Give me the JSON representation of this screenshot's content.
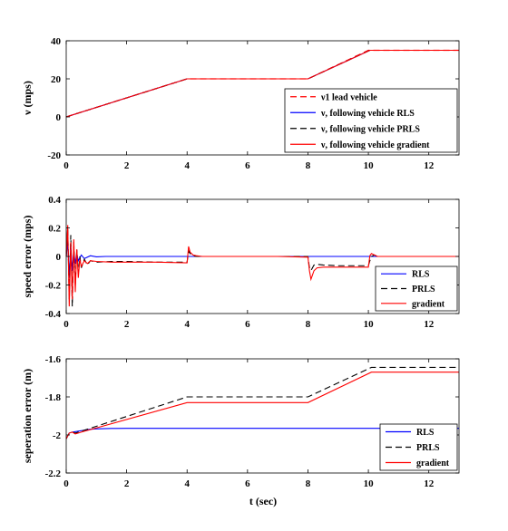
{
  "chart_data": [
    {
      "type": "line",
      "ylabel": "ν (mps)",
      "xlabel": "",
      "xlim": [
        0,
        13
      ],
      "ylim": [
        -20,
        40
      ],
      "xticks": [
        "0",
        "2",
        "4",
        "6",
        "8",
        "10",
        "12"
      ],
      "yticks": [
        "-20",
        "0",
        "20",
        "40"
      ],
      "grid": false,
      "legend_position": "bottom-right",
      "series": [
        {
          "name": "ν1 lead vehicle",
          "color": "#ff0000",
          "dash": "dashed",
          "x": [
            0,
            4,
            8,
            10,
            13
          ],
          "y": [
            0,
            20,
            20,
            35,
            35
          ]
        },
        {
          "name": "ν, following vehicle RLS",
          "color": "#0000ff",
          "dash": "solid",
          "x": [
            0,
            4,
            8,
            10.05,
            13
          ],
          "y": [
            0,
            20,
            20,
            35,
            35
          ]
        },
        {
          "name": "ν, following vehicle PRLS",
          "color": "#000000",
          "dash": "dashed",
          "x": [
            0,
            4,
            8,
            10.05,
            13
          ],
          "y": [
            0,
            20,
            20,
            35,
            35
          ]
        },
        {
          "name": "ν, following vehicle gradient",
          "color": "#ff0000",
          "dash": "solid",
          "x": [
            0,
            4,
            8,
            10.05,
            13
          ],
          "y": [
            0,
            20,
            20,
            35,
            35
          ]
        }
      ]
    },
    {
      "type": "line",
      "ylabel": "speed error (mps)",
      "xlabel": "",
      "xlim": [
        0,
        13
      ],
      "ylim": [
        -0.4,
        0.4
      ],
      "xticks": [
        "0",
        "2",
        "4",
        "6",
        "8",
        "10",
        "12"
      ],
      "yticks": [
        "-0.4",
        "-0.2",
        "0",
        "0.2",
        "0.4"
      ],
      "grid": false,
      "legend_position": "bottom-right",
      "series": [
        {
          "name": "RLS",
          "color": "#0000ff",
          "dash": "solid",
          "x": [
            0,
            0.05,
            0.1,
            0.15,
            0.2,
            0.25,
            0.3,
            0.35,
            0.4,
            0.5,
            0.6,
            0.8,
            1.0,
            1.3,
            13
          ],
          "y": [
            0,
            0.1,
            -0.15,
            0.08,
            -0.1,
            0.04,
            -0.05,
            0.02,
            -0.03,
            0.01,
            -0.015,
            0.005,
            -0.003,
            0,
            0
          ]
        },
        {
          "name": "PRLS",
          "color": "#000000",
          "dash": "dashed",
          "x": [
            0,
            0.05,
            0.1,
            0.15,
            0.2,
            0.25,
            0.3,
            0.35,
            0.4,
            0.45,
            0.5,
            0.6,
            0.7,
            0.8,
            1.0,
            1.5,
            2,
            3,
            4,
            4.05,
            4.1,
            4.2,
            4.3,
            4.5,
            5,
            6,
            7,
            8,
            8.05,
            8.1,
            8.2,
            8.3,
            8.5,
            9,
            9.5,
            10,
            10.05,
            10.1,
            10.2,
            10.3,
            10.5,
            11,
            12,
            13
          ],
          "y": [
            0,
            0.2,
            -0.3,
            0.15,
            -0.35,
            0.1,
            -0.2,
            0.05,
            -0.12,
            0.0,
            -0.08,
            -0.02,
            -0.06,
            -0.03,
            -0.04,
            -0.035,
            -0.035,
            -0.04,
            -0.04,
            0.04,
            0.02,
            0.005,
            0,
            0,
            0,
            0,
            0,
            0,
            -0.08,
            -0.1,
            -0.06,
            -0.055,
            -0.06,
            -0.065,
            -0.065,
            -0.065,
            -0.03,
            0.0,
            0.01,
            0.0,
            0,
            0,
            0,
            0
          ]
        },
        {
          "name": "gradient",
          "color": "#ff0000",
          "dash": "solid",
          "x": [
            0,
            0.05,
            0.1,
            0.15,
            0.2,
            0.25,
            0.3,
            0.35,
            0.4,
            0.45,
            0.5,
            0.6,
            0.7,
            0.8,
            1.0,
            1.5,
            2,
            3,
            4,
            4.05,
            4.1,
            4.2,
            4.3,
            4.5,
            5,
            6,
            7,
            8,
            8.05,
            8.1,
            8.2,
            8.3,
            8.5,
            9,
            9.5,
            10,
            10.05,
            10.1,
            10.2,
            10.3,
            10.5,
            11,
            12,
            13
          ],
          "y": [
            0,
            0.22,
            -0.35,
            0.1,
            -0.3,
            0.12,
            -0.25,
            0.05,
            -0.15,
            -0.02,
            -0.07,
            -0.03,
            -0.05,
            -0.03,
            -0.035,
            -0.04,
            -0.04,
            -0.04,
            -0.045,
            0.07,
            0.03,
            0.01,
            0.005,
            0,
            0,
            0,
            0,
            -0.005,
            -0.1,
            -0.16,
            -0.1,
            -0.08,
            -0.075,
            -0.075,
            -0.075,
            -0.075,
            0.005,
            0.02,
            0.01,
            0.0,
            0,
            0,
            0,
            0
          ]
        }
      ]
    },
    {
      "type": "line",
      "ylabel": "seperation error (m)",
      "xlabel": "t (sec)",
      "xlim": [
        0,
        13
      ],
      "ylim": [
        -2.2,
        -1.6
      ],
      "xticks": [
        "0",
        "2",
        "4",
        "6",
        "8",
        "10",
        "12"
      ],
      "yticks": [
        "-2.2",
        "-2",
        "-1.8",
        "-1.6"
      ],
      "grid": false,
      "legend_position": "bottom-right",
      "series": [
        {
          "name": "RLS",
          "color": "#0000ff",
          "dash": "solid",
          "x": [
            0,
            0.1,
            0.2,
            0.4,
            0.6,
            0.8,
            1.0,
            1.5,
            2,
            13
          ],
          "y": [
            -2.02,
            -1.99,
            -1.985,
            -1.98,
            -1.975,
            -1.97,
            -1.968,
            -1.966,
            -1.965,
            -1.965
          ]
        },
        {
          "name": "PRLS",
          "color": "#000000",
          "dash": "dashed",
          "x": [
            0,
            0.1,
            0.2,
            0.3,
            0.5,
            4,
            8,
            10.1,
            13
          ],
          "y": [
            -2.02,
            -1.99,
            -1.985,
            -1.99,
            -1.98,
            -1.8,
            -1.8,
            -1.645,
            -1.645
          ]
        },
        {
          "name": "gradient",
          "color": "#ff0000",
          "dash": "solid",
          "x": [
            0,
            0.1,
            0.2,
            0.3,
            0.5,
            4,
            8,
            10.1,
            13
          ],
          "y": [
            -2.02,
            -1.99,
            -1.985,
            -1.995,
            -1.985,
            -1.83,
            -1.83,
            -1.67,
            -1.67
          ]
        }
      ]
    }
  ]
}
